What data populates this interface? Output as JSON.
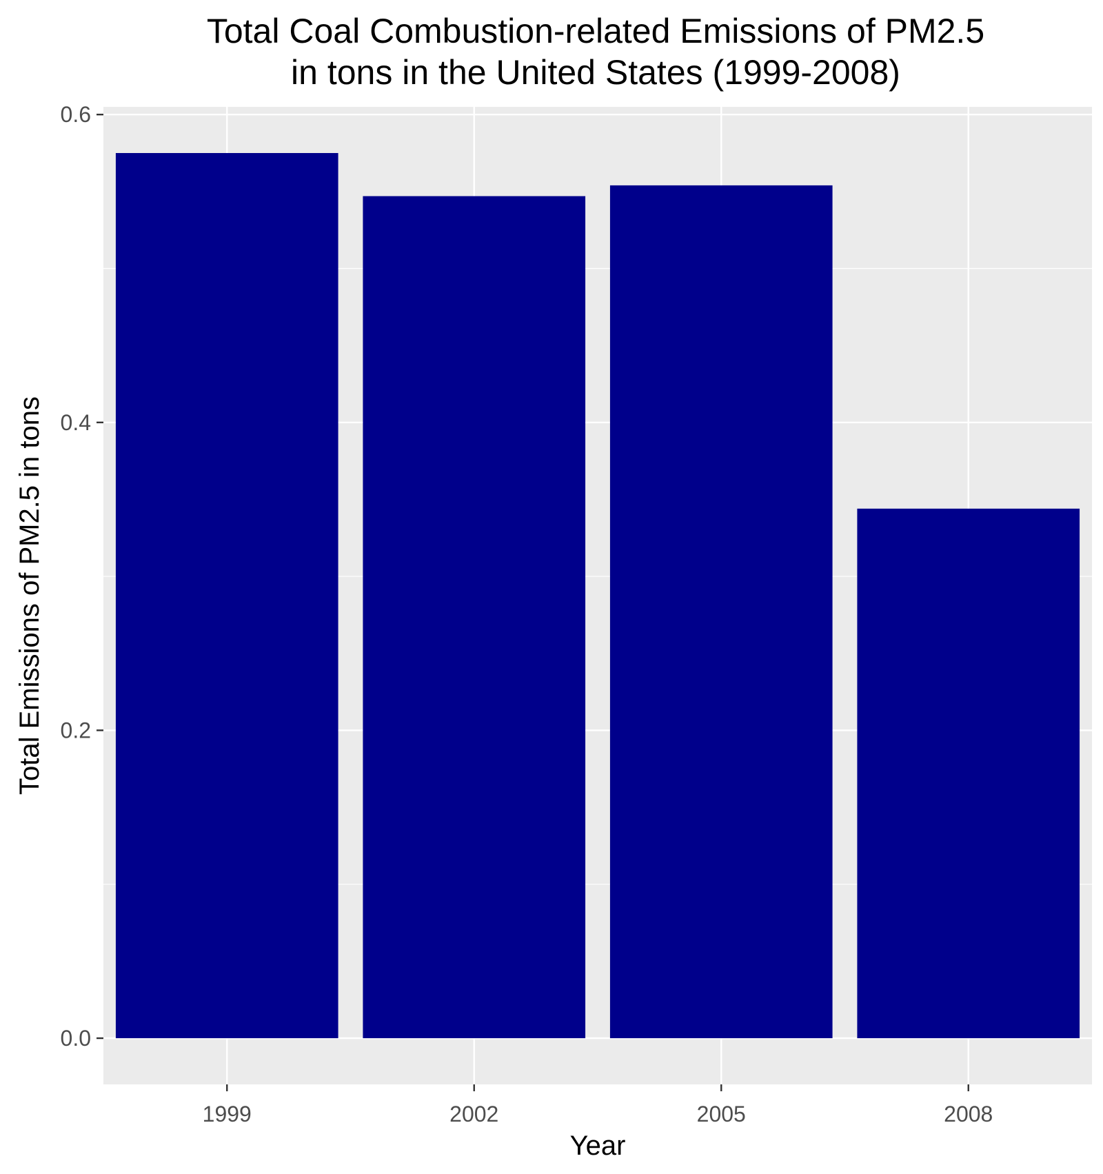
{
  "chart_data": {
    "type": "bar",
    "title_lines": [
      "Total Coal Combustion-related Emissions of PM2.5",
      "in tons in the United States (1999-2008)"
    ],
    "xlabel": "Year",
    "ylabel": "Total Emissions of PM2.5 in tons",
    "categories": [
      "1999",
      "2002",
      "2005",
      "2008"
    ],
    "values": [
      0.575,
      0.547,
      0.554,
      0.344
    ],
    "ylim": [
      -0.03,
      0.605
    ],
    "yticks": [
      0.0,
      0.2,
      0.4,
      0.6
    ],
    "ytick_labels": [
      "0.0",
      "0.2",
      "0.4",
      "0.6"
    ],
    "grid": true,
    "colors": {
      "bar": "#00008B",
      "panel": "#EBEBEB",
      "grid": "#FFFFFF",
      "tick": "#333333"
    }
  }
}
